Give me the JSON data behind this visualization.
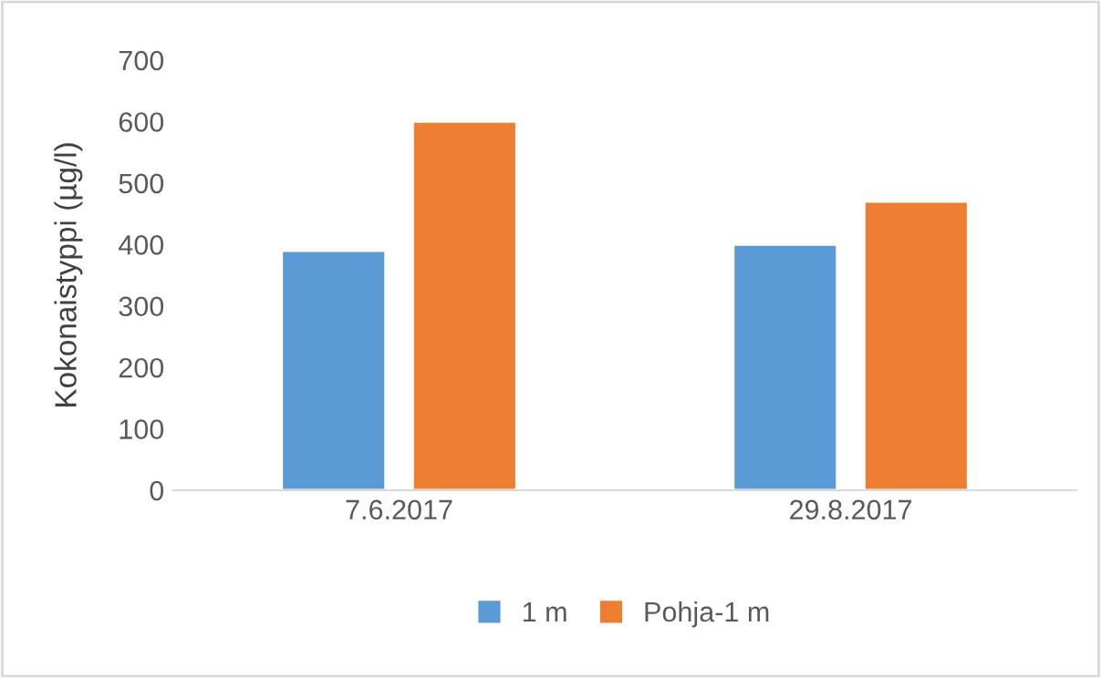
{
  "chart_data": {
    "type": "bar",
    "ylabel": "Kokonaistyppi (µg/l)",
    "categories": [
      "7.6.2017",
      "29.8.2017"
    ],
    "series": [
      {
        "name": "1 m",
        "color": "#5b9bd5",
        "values": [
          390,
          400
        ]
      },
      {
        "name": "Pohja-1 m",
        "color": "#ed7d31",
        "values": [
          600,
          470
        ]
      }
    ],
    "ylim": [
      0,
      700
    ],
    "yticks": [
      0,
      100,
      200,
      300,
      400,
      500,
      600,
      700
    ],
    "grid": false,
    "legend": "bottom"
  }
}
